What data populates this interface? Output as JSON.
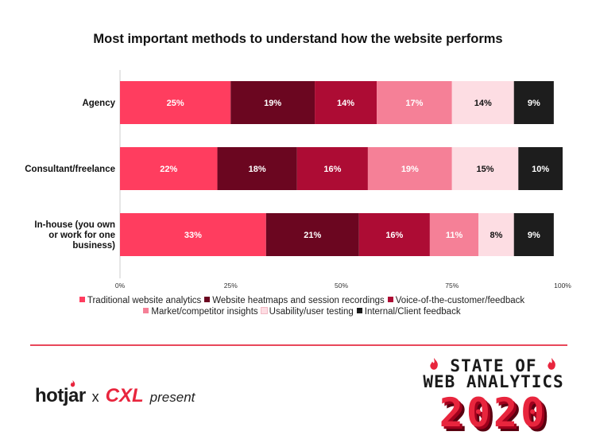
{
  "chart_data": {
    "type": "bar",
    "orientation": "horizontal",
    "stacked": true,
    "title": "Most important methods to understand how the website performs",
    "categories": [
      "Agency",
      "Consultant/freelance",
      "In-house (you own or work for one business)"
    ],
    "category_lines": [
      [
        "Agency"
      ],
      [
        "Consultant/freelance"
      ],
      [
        "In-house (you own",
        "or work for one",
        "business)"
      ]
    ],
    "series": [
      {
        "name": "Traditional website analytics",
        "color": "#ff3d5f",
        "values": [
          25,
          22,
          33
        ]
      },
      {
        "name": "Website heatmaps and session recordings",
        "color": "#6b0620",
        "values": [
          19,
          18,
          21
        ]
      },
      {
        "name": "Voice-of-the-customer/feedback",
        "color": "#ad0c34",
        "values": [
          14,
          16,
          16
        ]
      },
      {
        "name": "Market/competitor insights",
        "color": "#f58097",
        "values": [
          17,
          19,
          11
        ]
      },
      {
        "name": "Usability/user testing",
        "color": "#fddde3",
        "values": [
          14,
          15,
          8
        ]
      },
      {
        "name": "Internal/Client feedback",
        "color": "#1d1d1d",
        "values": [
          9,
          10,
          9
        ]
      }
    ],
    "label_colors": [
      "#ffffff",
      "#ffffff",
      "#ffffff",
      "#ffffff",
      "#111111",
      "#ffffff"
    ],
    "xlim": [
      0,
      100
    ],
    "x_ticks": [
      "0%",
      "25%",
      "50%",
      "75%",
      "100%"
    ],
    "legend_position": "bottom",
    "grid": false
  },
  "footer": {
    "hotjar": "hotjar",
    "times": "x",
    "cxl": "CXL",
    "present": "present"
  },
  "logo": {
    "line1": "STATE OF",
    "line2": "WEB ANALYTICS",
    "year": "2020"
  }
}
